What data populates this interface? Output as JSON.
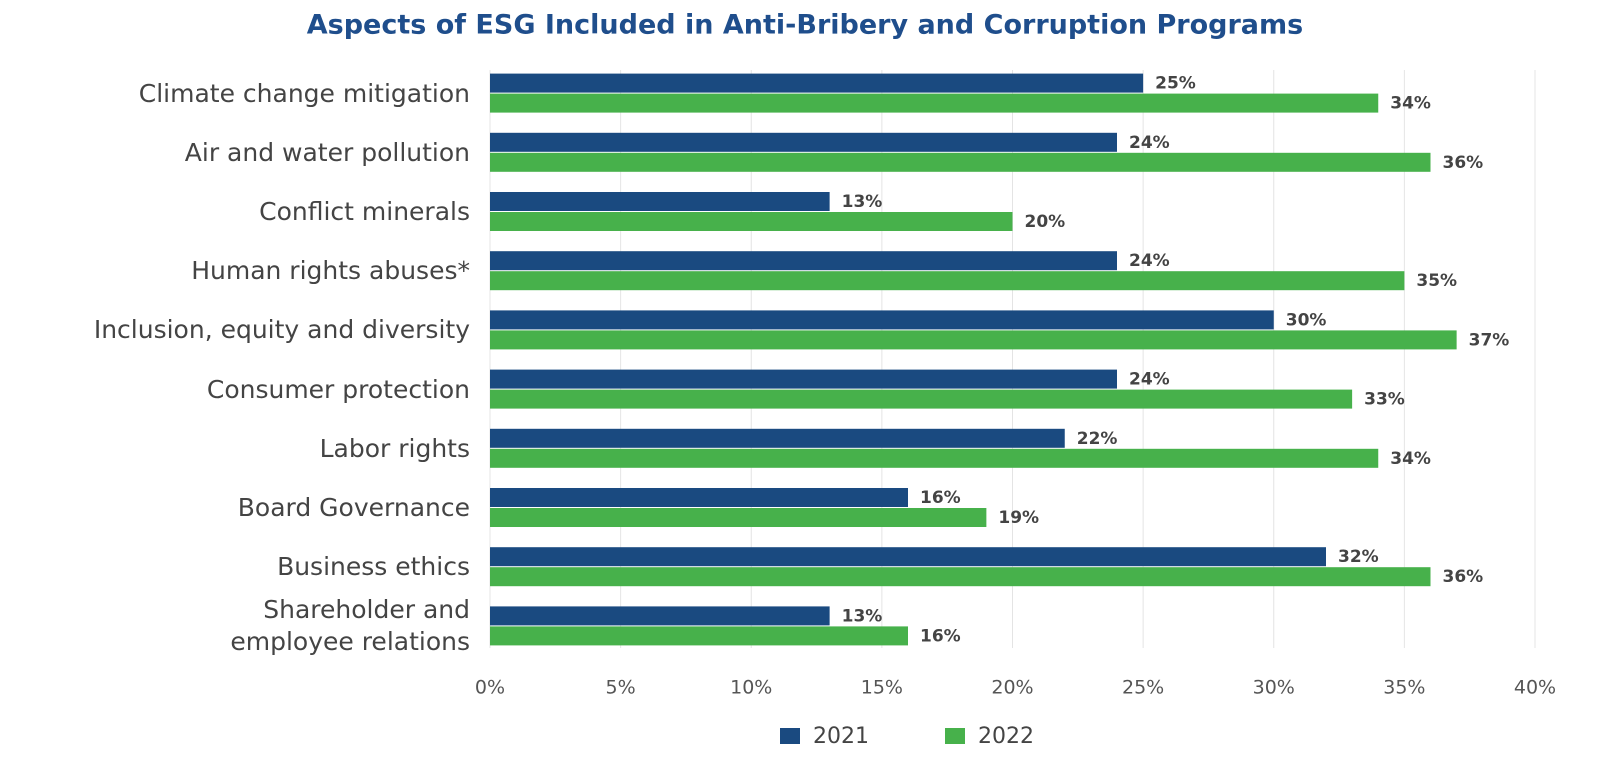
{
  "chart_data": {
    "type": "bar",
    "orientation": "horizontal",
    "title": "Aspects of ESG Included in Anti-Bribery and Corruption Programs",
    "categories": [
      "Climate change mitigation",
      "Air and water pollution",
      "Conflict minerals",
      "Human rights abuses*",
      "Inclusion, equity and diversity",
      "Consumer protection",
      "Labor rights",
      "Board Governance",
      "Business ethics",
      "Shareholder and\nemployee relations"
    ],
    "series": [
      {
        "name": "2021",
        "color": "#1a4a80",
        "values": [
          25,
          24,
          13,
          24,
          30,
          24,
          22,
          16,
          32,
          13
        ],
        "value_labels": [
          "25%",
          "24%",
          "13%",
          "24%",
          "30%",
          "24%",
          "22%",
          "16%",
          "32%",
          "13%"
        ]
      },
      {
        "name": "2022",
        "color": "#47b14b",
        "values": [
          34,
          36,
          20,
          35,
          37,
          33,
          34,
          19,
          36,
          16
        ],
        "value_labels": [
          "34%",
          "36%",
          "20%",
          "35%",
          "37%",
          "33%",
          "34%",
          "19%",
          "36%",
          "16%"
        ]
      }
    ],
    "xlim": [
      0,
      40
    ],
    "xticks": [
      {
        "value": 0,
        "label": "0%"
      },
      {
        "value": 5,
        "label": "5%"
      },
      {
        "value": 10,
        "label": "10%"
      },
      {
        "value": 15,
        "label": "15%"
      },
      {
        "value": 20,
        "label": "20%"
      },
      {
        "value": 25,
        "label": "25%"
      },
      {
        "value": 30,
        "label": "30%"
      },
      {
        "value": 35,
        "label": "35%"
      },
      {
        "value": 40,
        "label": "40%"
      }
    ],
    "grid": true,
    "legend": "bottom"
  }
}
